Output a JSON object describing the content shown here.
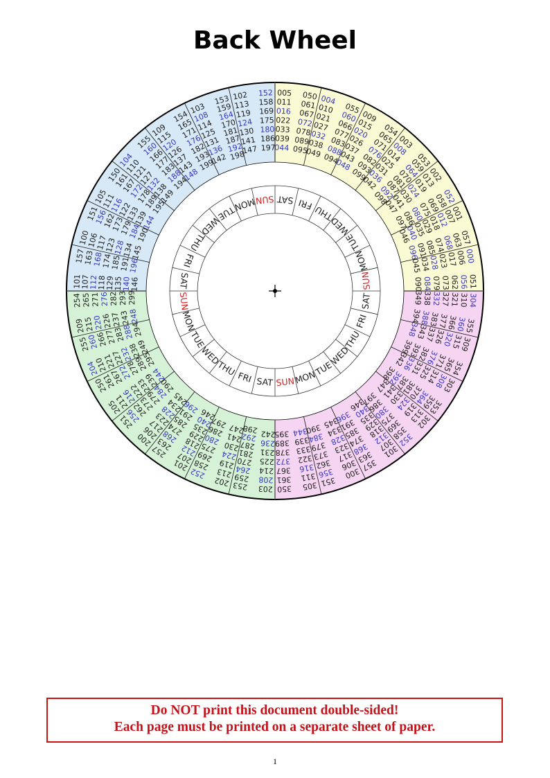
{
  "title": "Back Wheel",
  "wheel": {
    "number_color": "#1c1c1c",
    "leap_number_color": "#3535c4",
    "sunday_color": "#d42020",
    "day_color": "#1c1c1c",
    "days": [
      "SAT",
      "FRI",
      "THU",
      "WED",
      "TUE",
      "MON",
      "SUN",
      "SAT",
      "FRI",
      "THU",
      "WED",
      "TUE",
      "MON",
      "SUN",
      "SAT",
      "FRI",
      "THU",
      "WED",
      "TUE",
      "MON",
      "SUN",
      "SAT",
      "FRI",
      "THU",
      "WED",
      "TUE",
      "MON",
      "SUN"
    ],
    "quadrants": [
      {
        "color": "#fafad4",
        "sectors": [
          {
            "left": [
              "005",
              "011",
              "016",
              "022",
              "033",
              "039",
              "044"
            ],
            "right": [
              "050",
              "061",
              "067",
              "072",
              "078",
              "089",
              "095"
            ]
          },
          {
            "left": [
              "004",
              "010",
              "021",
              "027",
              "032",
              "038",
              "049"
            ],
            "right": [
              "055",
              "060",
              "066",
              "077",
              "083",
              "088",
              "094"
            ]
          },
          {
            "left": [
              "009",
              "015",
              "020",
              "026",
              "037",
              "043",
              "048"
            ],
            "right": [
              "054",
              "065",
              "071",
              "076",
              "082",
              "093",
              "099"
            ]
          },
          {
            "left": [
              "003",
              "008",
              "014",
              "025",
              "031",
              "036",
              "042"
            ],
            "right": [
              "053",
              "059",
              "064",
              "070",
              "081",
              "087",
              "092",
              "098"
            ]
          },
          {
            "left": [
              "002",
              "013",
              "019",
              "024",
              "030",
              "041",
              "047"
            ],
            "right": [
              "052",
              "058",
              "069",
              "075",
              "080",
              "086",
              "097"
            ]
          },
          {
            "left": [
              "001",
              "007",
              "012",
              "018",
              "029",
              "035",
              "040",
              "046"
            ],
            "right": [
              "057",
              "063",
              "068",
              "074",
              "085",
              "091",
              "096"
            ]
          },
          {
            "left": [
              "000",
              "006",
              "017",
              "023",
              "028",
              "034",
              "045"
            ],
            "right": [
              "051",
              "056",
              "062",
              "073",
              "079",
              "084",
              "090"
            ]
          }
        ]
      },
      {
        "color": "#f6d5f2",
        "sectors": [
          {
            "left": [
              "304",
              "310",
              "321",
              "327",
              "332",
              "338",
              "349"
            ],
            "right": [
              "355",
              "360",
              "366",
              "377",
              "383",
              "388",
              "394"
            ]
          },
          {
            "left": [
              "309",
              "315",
              "320",
              "326",
              "337",
              "343",
              "348"
            ],
            "right": [
              "354",
              "365",
              "371",
              "376",
              "382",
              "393",
              "399"
            ]
          },
          {
            "left": [
              "303",
              "308",
              "314",
              "325",
              "331",
              "336",
              "342"
            ],
            "right": [
              "353",
              "359",
              "364",
              "370",
              "381",
              "387",
              "392",
              "398"
            ]
          },
          {
            "left": [
              "302",
              "313",
              "319",
              "324",
              "330",
              "341",
              "347"
            ],
            "right": [
              "352",
              "358",
              "369",
              "375",
              "380",
              "386",
              "397"
            ]
          },
          {
            "left": [
              "301",
              "307",
              "312",
              "318",
              "329",
              "335",
              "340",
              "346"
            ],
            "right": [
              "357",
              "363",
              "368",
              "374",
              "385",
              "391",
              "396"
            ]
          },
          {
            "left": [
              "300",
              "306",
              "317",
              "323",
              "328",
              "334",
              "345"
            ],
            "right": [
              "351",
              "356",
              "362",
              "373",
              "379",
              "384",
              "390"
            ]
          },
          {
            "left": [
              "305",
              "311",
              "316",
              "322",
              "333",
              "339",
              "344"
            ],
            "right": [
              "350",
              "361",
              "367",
              "372",
              "378",
              "389",
              "395"
            ]
          }
        ]
      },
      {
        "color": "#d6f2d6",
        "sectors": [
          {
            "left": [
              "203",
              "208",
              "214",
              "225",
              "231",
              "236",
              "242"
            ],
            "right": [
              "253",
              "259",
              "264",
              "270",
              "281",
              "287",
              "292",
              "298"
            ]
          },
          {
            "left": [
              "202",
              "213",
              "219",
              "224",
              "230",
              "241",
              "247"
            ],
            "right": [
              "252",
              "258",
              "269",
              "275",
              "280",
              "286",
              "297"
            ]
          },
          {
            "left": [
              "201",
              "207",
              "212",
              "218",
              "229",
              "235",
              "240",
              "246"
            ],
            "right": [
              "257",
              "263",
              "268",
              "274",
              "285",
              "291",
              "296"
            ]
          },
          {
            "left": [
              "200",
              "206",
              "217",
              "223",
              "228",
              "234",
              "245"
            ],
            "right": [
              "251",
              "256",
              "262",
              "273",
              "279",
              "284",
              "290"
            ]
          },
          {
            "left": [
              "205",
              "211",
              "216",
              "222",
              "233",
              "239",
              "244"
            ],
            "right": [
              "250",
              "261",
              "267",
              "272",
              "278",
              "289",
              "295"
            ]
          },
          {
            "left": [
              "204",
              "210",
              "221",
              "227",
              "232",
              "238",
              "249"
            ],
            "right": [
              "255",
              "260",
              "266",
              "277",
              "283",
              "288",
              "294"
            ]
          },
          {
            "left": [
              "209",
              "215",
              "220",
              "226",
              "237",
              "243",
              "248"
            ],
            "right": [
              "254",
              "265",
              "271",
              "276",
              "282",
              "293",
              "299"
            ]
          }
        ]
      },
      {
        "color": "#d7e8f6",
        "sectors": [
          {
            "left": [
              "101",
              "107",
              "112",
              "118",
              "129",
              "135",
              "140",
              "146"
            ],
            "right": [
              "157",
              "163",
              "168",
              "174",
              "185",
              "191",
              "196"
            ]
          },
          {
            "left": [
              "100",
              "106",
              "117",
              "123",
              "128",
              "134",
              "145"
            ],
            "right": [
              "151",
              "156",
              "162",
              "173",
              "179",
              "184",
              "190"
            ]
          },
          {
            "left": [
              "105",
              "111",
              "116",
              "122",
              "133",
              "139",
              "144"
            ],
            "right": [
              "150",
              "161",
              "167",
              "172",
              "178",
              "189",
              "195"
            ]
          },
          {
            "left": [
              "104",
              "110",
              "121",
              "127",
              "132",
              "138",
              "149"
            ],
            "right": [
              "155",
              "160",
              "166",
              "177",
              "183",
              "188",
              "194"
            ]
          },
          {
            "left": [
              "109",
              "115",
              "120",
              "126",
              "137",
              "143",
              "148"
            ],
            "right": [
              "154",
              "165",
              "171",
              "176",
              "182",
              "193",
              "199"
            ]
          },
          {
            "left": [
              "103",
              "108",
              "114",
              "125",
              "131",
              "136",
              "142"
            ],
            "right": [
              "153",
              "159",
              "164",
              "170",
              "181",
              "187",
              "192",
              "198"
            ]
          },
          {
            "left": [
              "102",
              "113",
              "119",
              "124",
              "130",
              "141",
              "147"
            ],
            "right": [
              "152",
              "158",
              "169",
              "175",
              "180",
              "186",
              "197"
            ]
          }
        ]
      }
    ]
  },
  "notice": {
    "line1": "Do NOT print this document double-sided!",
    "line2": "Each page must be printed on a separate sheet of paper."
  },
  "page_number": "1"
}
